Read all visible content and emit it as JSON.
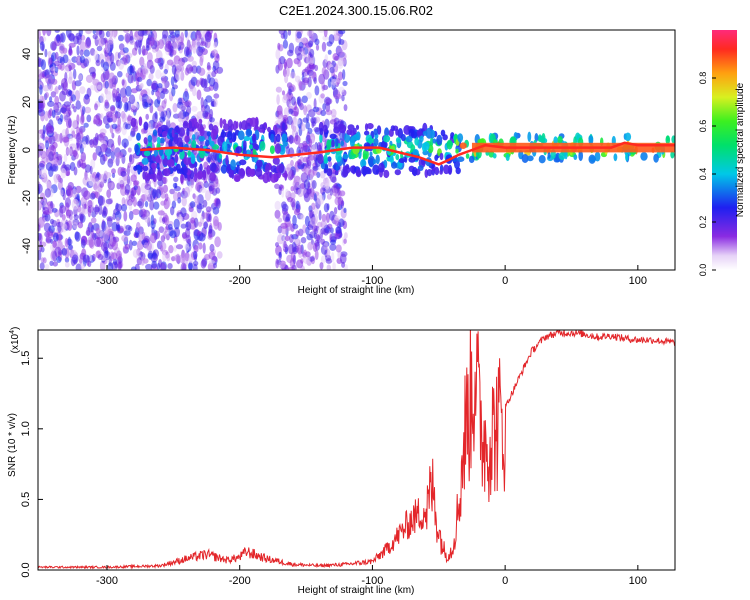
{
  "title": "C2E1.2024.300.15.06.R02",
  "colors": {
    "signal": "#e3262a",
    "spectrum_low": "#7a1ae6",
    "spectrum_mid": "#00e0e0",
    "spectrum_high": "#ff2020"
  },
  "chart_data": [
    {
      "type": "heatmap",
      "title": "C2E1.2024.300.15.06.R02",
      "xlabel": "Height of straight line (km)",
      "ylabel": "Frequency (Hz)",
      "xlim": [
        -352,
        128
      ],
      "ylim": [
        -50,
        50
      ],
      "xticks": [
        -300,
        -200,
        -100,
        0,
        100
      ],
      "yticks": [
        -40,
        -20,
        0,
        20,
        40
      ],
      "colorbar": {
        "label": "Normalized spectral amplitude",
        "range": [
          0.0,
          1.0
        ],
        "ticks": [
          "0.0",
          "0.2",
          "0.4",
          "0.6",
          "0.8"
        ],
        "colormap": "rainbow (violet to red)"
      },
      "regions": [
        {
          "x": [
            -352,
            -215
          ],
          "f": [
            -50,
            50
          ],
          "level": 0.25,
          "note": "broadband noise"
        },
        {
          "x": [
            -172,
            -120
          ],
          "f": [
            -50,
            50
          ],
          "level": 0.25,
          "note": "broadband noise"
        },
        {
          "x": [
            -280,
            -165
          ],
          "f": [
            -12,
            12
          ],
          "level": 0.45
        },
        {
          "x": [
            -140,
            -35
          ],
          "f": [
            -10,
            10
          ],
          "level": 0.55
        },
        {
          "x": [
            -40,
            128
          ],
          "f": [
            -4,
            6
          ],
          "level": 0.9
        }
      ],
      "line_trace": {
        "x": [
          -275,
          -250,
          -225,
          -200,
          -175,
          -140,
          -115,
          -95,
          -80,
          -65,
          -50,
          -42,
          -35,
          -25,
          -15,
          0,
          20,
          50,
          80,
          90,
          100,
          128
        ],
        "f": [
          0,
          1,
          0,
          -2,
          -3,
          -1,
          1,
          1,
          -1,
          -3,
          -6,
          -4,
          -2,
          0,
          2,
          1,
          1,
          1,
          1,
          3,
          2,
          2
        ]
      }
    },
    {
      "type": "line",
      "xlabel": "Height of straight line (km)",
      "ylabel": "SNR (10 * v/v)",
      "multiplier_label": "(x10",
      "multiplier_exp": "4",
      "xlim": [
        -352,
        128
      ],
      "ylim": [
        0,
        17000
      ],
      "xticks": [
        -300,
        -200,
        -100,
        0,
        100
      ],
      "yticks": [
        "0.0",
        "0.5",
        "1.0",
        "1.5"
      ],
      "grid": false,
      "series": [
        {
          "x": [
            -352,
            -300,
            -260,
            -240,
            -225,
            -210,
            -200,
            -195,
            -180,
            -160,
            -140,
            -120,
            -100,
            -90,
            -80,
            -70,
            -60,
            -55,
            -50,
            -45,
            -40,
            -35,
            -30,
            -25,
            -22,
            -20,
            -15,
            -10,
            -5,
            0,
            10,
            20,
            30,
            40,
            50,
            60,
            70,
            80,
            90,
            100,
            110,
            120,
            128
          ],
          "y": [
            200,
            200,
            300,
            800,
            1100,
            700,
            900,
            1300,
            800,
            400,
            300,
            400,
            600,
            1400,
            2500,
            3600,
            4300,
            6500,
            3000,
            1200,
            1500,
            5000,
            11000,
            14000,
            17000,
            12000,
            10000,
            10500,
            11500,
            11500,
            13500,
            15500,
            16500,
            16800,
            16800,
            16700,
            16500,
            16600,
            16400,
            16300,
            16300,
            16200,
            16100
          ]
        }
      ]
    }
  ]
}
